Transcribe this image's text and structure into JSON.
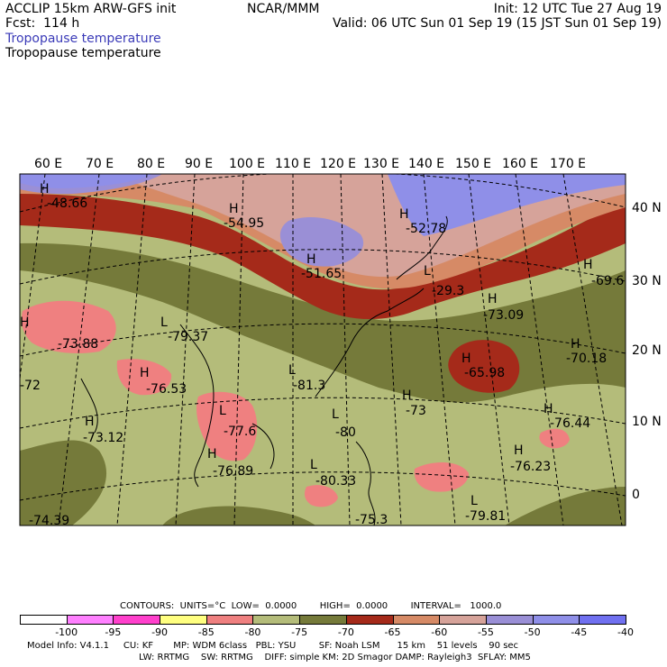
{
  "header": {
    "model": "ACCLIP 15km ARW-GFS init",
    "forecast": "Fcst:  114 h",
    "var_title_1": "Tropopause temperature",
    "var_title_2": "Tropopause temperature",
    "org": "NCAR/MMM",
    "init": "Init: 12 UTC Tue 27 Aug 19",
    "valid": "Valid: 06 UTC Sun 01 Sep 19 (15 JST Sun 01 Sep 19)"
  },
  "colors": {
    "purple_title": "#3b3bb8",
    "lt_blue": "#8f8fe8",
    "lavender": "#9a8fd6",
    "pink_tan": "#d6a39a",
    "salmon": "#d68a66",
    "dark_red": "#a52a1a",
    "olive_dark": "#757a3a",
    "olive_light": "#b4bc7a",
    "pink": "#ef8080"
  },
  "map": {
    "top_lon_labels": [
      "60 E",
      "70 E",
      "80 E",
      "90 E",
      "100 E",
      "110 E",
      "120 E",
      "130 E",
      "140 E",
      "150 E",
      "160 E",
      "170 E"
    ],
    "right_lat_labels": [
      "40 N",
      "30 N",
      "20 N",
      "10 N",
      "0"
    ],
    "extrema": [
      {
        "t": "H",
        "v": "-48.66"
      },
      {
        "t": "H",
        "v": "-54.95"
      },
      {
        "t": "H",
        "v": "-52.78"
      },
      {
        "t": "H",
        "v": "-51.65"
      },
      {
        "t": "L",
        "v": "-29.3"
      },
      {
        "t": "H",
        "v": "-69.6"
      },
      {
        "t": "H",
        "v": "-73.09"
      },
      {
        "t": "H",
        "v": "-73.88"
      },
      {
        "t": "L",
        "v": "-79.37"
      },
      {
        "t": "H",
        "v": "-70.18"
      },
      {
        "t": "H",
        "v": "-65.98"
      },
      {
        "t": "H",
        "v": "-76.53"
      },
      {
        "t": "L",
        "v": "-81.3"
      },
      {
        "t": "H",
        "v": "-73"
      },
      {
        "t": "H",
        "v": "-76.44"
      },
      {
        "t": "",
        "v": "-72"
      },
      {
        "t": "H",
        "v": "-73.12"
      },
      {
        "t": "L",
        "v": "-77.6"
      },
      {
        "t": "L",
        "v": "-80"
      },
      {
        "t": "H",
        "v": "-76.89"
      },
      {
        "t": "H",
        "v": "-76.23"
      },
      {
        "t": "L",
        "v": "-80.33"
      },
      {
        "t": "",
        "v": "-75.3"
      },
      {
        "t": "L",
        "v": "-79.81"
      },
      {
        "t": "",
        "v": "-74.39"
      }
    ]
  },
  "colorbar": {
    "labels": [
      "-100",
      "-95",
      "-90",
      "-85",
      "-80",
      "-75",
      "-70",
      "-65",
      "-60",
      "-55",
      "-50",
      "-45",
      "-40",
      "°C"
    ],
    "fills": [
      "#ffffff",
      "#ff80ff",
      "#ff40cc",
      "#ffff80",
      "#ef8080",
      "#b4bc7a",
      "#757a3a",
      "#a52a1a",
      "#d68a66",
      "#d6a39a",
      "#9a8fd6",
      "#8f8fe8",
      "#7070f0"
    ]
  },
  "footer": {
    "contours": "CONTOURS:  UNITS=°C  LOW=  0.0000        HIGH=  0.0000        INTERVAL=   1000.0",
    "line1": "Model Info: V4.1.1     CU: KF       MP: WDM 6class   PBL: YSU        SF: Noah LSM      15 km    51 levels    90 sec",
    "line2": "LW: RRTMG    SW: RRTMG    DIFF: simple KM: 2D Smagor DAMP: Rayleigh3  SFLAY: MM5"
  }
}
